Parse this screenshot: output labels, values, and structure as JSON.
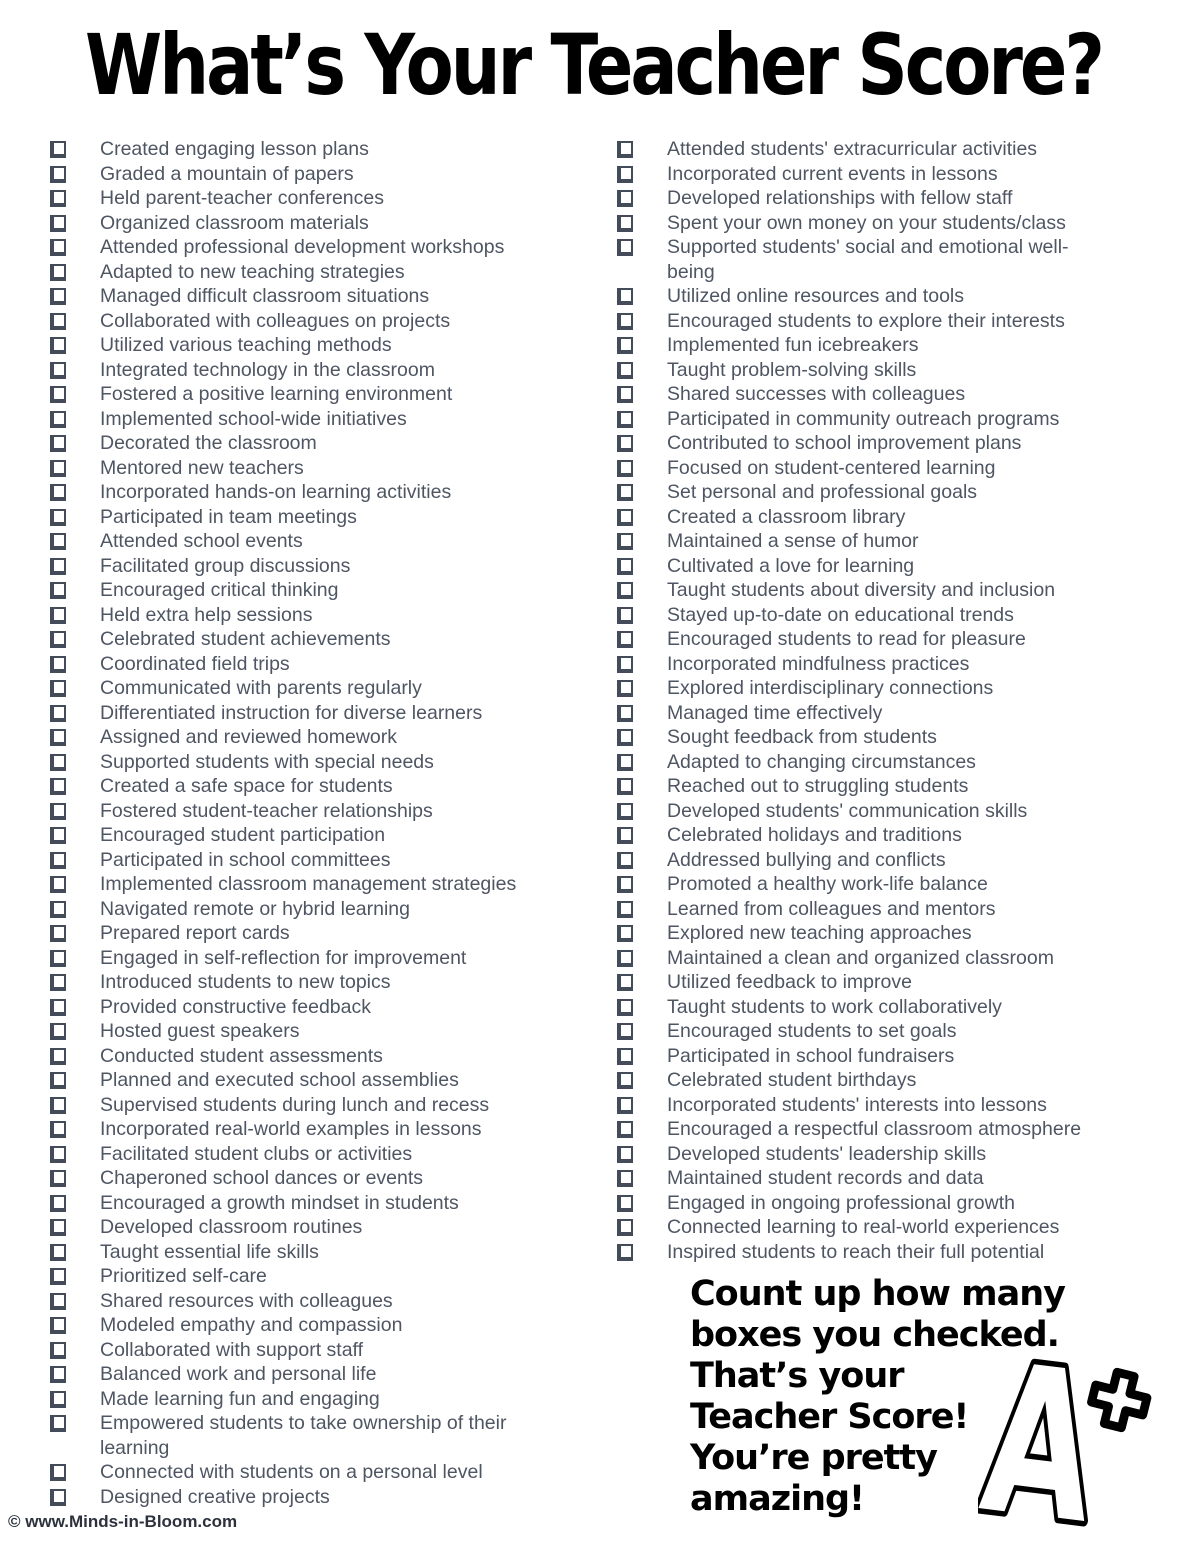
{
  "title": "What’s Your Teacher Score?",
  "checklist": {
    "left": [
      "Created engaging lesson plans",
      "Graded a mountain of papers",
      "Held parent-teacher conferences",
      "Organized classroom materials",
      "Attended professional development workshops",
      "Adapted to new teaching strategies",
      "Managed difficult classroom situations",
      "Collaborated with colleagues on projects",
      "Utilized various teaching methods",
      "Integrated technology in the classroom",
      "Fostered a positive learning environment",
      "Implemented school-wide initiatives",
      "Decorated the classroom",
      "Mentored new teachers",
      "Incorporated hands-on learning activities",
      "Participated in team meetings",
      "Attended school events",
      "Facilitated group discussions",
      "Encouraged critical thinking",
      "Held extra help sessions",
      "Celebrated student achievements",
      "Coordinated field trips",
      "Communicated with parents regularly",
      "Differentiated instruction for diverse learners",
      "Assigned and reviewed homework",
      "Supported students with special needs",
      "Created a safe space for students",
      "Fostered student-teacher relationships",
      "Encouraged student participation",
      "Participated in school committees",
      "Implemented classroom management strategies",
      "Navigated remote or hybrid learning",
      "Prepared report cards",
      "Engaged in self-reflection for improvement",
      "Introduced students to new topics",
      "Provided constructive feedback",
      "Hosted guest speakers",
      "Conducted student assessments",
      "Planned and executed school assemblies",
      "Supervised students during lunch and recess",
      "Incorporated real-world examples in lessons",
      "Facilitated student clubs or activities",
      "Chaperoned school dances or events",
      "Encouraged a growth mindset in students",
      "Developed classroom routines",
      "Taught essential life skills",
      "Prioritized self-care",
      "Shared resources with colleagues",
      "Modeled empathy and compassion",
      "Collaborated with support staff",
      "Balanced work and personal life",
      "Made learning fun and engaging",
      "Empowered students to take ownership of their\nlearning",
      "Connected with students on a personal level",
      "Designed creative projects"
    ],
    "right": [
      "Attended students' extracurricular activities",
      "Incorporated current events in lessons",
      "Developed relationships with fellow staff",
      "Spent your own money on your students/class",
      "Supported students' social and emotional well-\nbeing",
      "Utilized online resources and tools",
      "Encouraged students to explore their interests",
      "Implemented fun icebreakers",
      "Taught problem-solving skills",
      "Shared successes with colleagues",
      "Participated in community outreach programs",
      "Contributed to school improvement plans",
      "Focused on student-centered learning",
      "Set personal and professional goals",
      "Created a classroom library",
      "Maintained a sense of humor",
      "Cultivated a love for learning",
      "Taught students about diversity and inclusion",
      "Stayed up-to-date on educational trends",
      "Encouraged students to read for pleasure",
      "Incorporated mindfulness practices",
      "Explored interdisciplinary connections",
      "Managed time effectively",
      "Sought feedback from students",
      "Adapted to changing circumstances",
      "Reached out to struggling students",
      "Developed students' communication skills",
      "Celebrated holidays and traditions",
      "Addressed bullying and conflicts",
      "Promoted a healthy work-life balance",
      "Learned from colleagues and mentors",
      "Explored new teaching approaches",
      "Maintained a clean and organized classroom",
      "Utilized feedback to improve",
      "Taught students to work collaboratively",
      "Encouraged students to set goals",
      "Participated in school fundraisers",
      "Celebrated student birthdays",
      "Incorporated students' interests into lessons",
      "Encouraged a respectful classroom atmosphere",
      "Developed students' leadership skills",
      "Maintained student records and data",
      "Engaged in ongoing professional growth",
      "Connected learning to real-world experiences",
      "Inspired students to reach their full potential"
    ]
  },
  "message": "Count up how many\nboxes you checked.\nThat’s your\nTeacher Score!\nYou’re pretty\namazing!",
  "grade_icon": "A+",
  "footer": "© www.Minds-in-Bloom.com",
  "colors": {
    "list_text": "#4e5663",
    "checkbox_border": "#454c59",
    "heading_text": "#000000",
    "background": "#ffffff"
  }
}
